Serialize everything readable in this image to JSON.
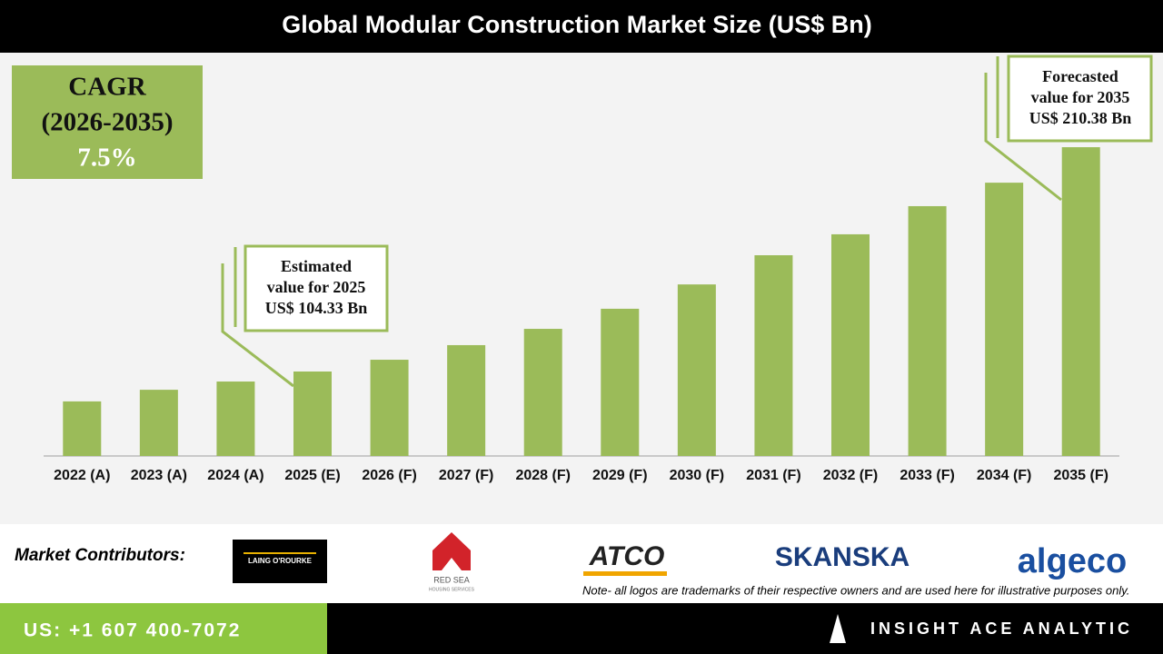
{
  "header": {
    "title": "Global Modular Construction Market Size (US$ Bn)"
  },
  "cagr": {
    "label": "CAGR",
    "period": "(2026-2035)",
    "value": "7.5%"
  },
  "chart_data": {
    "type": "bar",
    "categories": [
      "2022 (A)",
      "2023 (A)",
      "2024 (A)",
      "2025 (E)",
      "2026 (F)",
      "2027 (F)",
      "2028 (F)",
      "2029 (F)",
      "2030 (F)",
      "2031 (F)",
      "2032 (F)",
      "2033 (F)",
      "2034 (F)",
      "2035 (F)"
    ],
    "values": [
      90.2,
      95.7,
      99.6,
      104.33,
      109.9,
      116.8,
      124.5,
      134.0,
      145.5,
      159.3,
      169.2,
      182.5,
      193.6,
      210.38
    ],
    "color": "#9bbb59",
    "ylim": [
      64.4,
      254.2
    ],
    "annotations": [
      {
        "lines": [
          "Estimated",
          "value for 2025",
          "US$ 104.33 Bn"
        ]
      },
      {
        "lines": [
          "Forecasted",
          "value for 2035",
          "US$ 210.38 Bn"
        ]
      }
    ]
  },
  "contributors": {
    "label": "Market Contributors:",
    "logos": [
      "LAING O'ROURKE",
      "RED SEA",
      "HOUSING SERVICES",
      "ATCO",
      "SKANSKA",
      "algeco"
    ],
    "note": "Note- all logos are trademarks of their respective owners and are used here for illustrative purposes only."
  },
  "footer": {
    "phone": "US: +1 607 400-7072",
    "brand": "INSIGHT ACE ANALYTIC"
  }
}
